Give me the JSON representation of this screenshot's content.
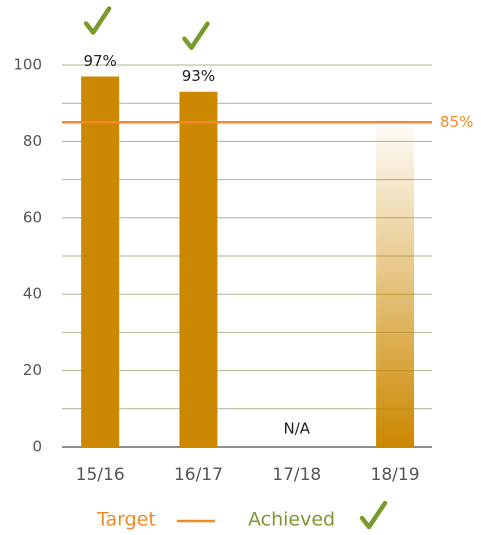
{
  "chart_data": {
    "type": "bar",
    "categories": [
      "15/16",
      "16/17",
      "17/18",
      "18/19"
    ],
    "values": [
      97,
      93,
      null,
      84
    ],
    "value_labels": [
      "97%",
      "93%",
      "N/A",
      null
    ],
    "bar_style": [
      "solid",
      "solid",
      "solid",
      "gradient"
    ],
    "achieved": [
      true,
      true,
      false,
      false
    ],
    "color": "#cc8800",
    "ylim": [
      0,
      100
    ],
    "yticks": [
      0,
      20,
      40,
      60,
      80,
      100
    ],
    "minor_gridlines": [
      10,
      30,
      50,
      70,
      90
    ],
    "grid": true,
    "grid_color": "#a9b78a",
    "target": {
      "value": 85,
      "label": "85%",
      "color": "#f08a24"
    },
    "legend": {
      "target": "Target",
      "achieved": "Achieved",
      "achieved_color": "#7a9a2e"
    }
  }
}
